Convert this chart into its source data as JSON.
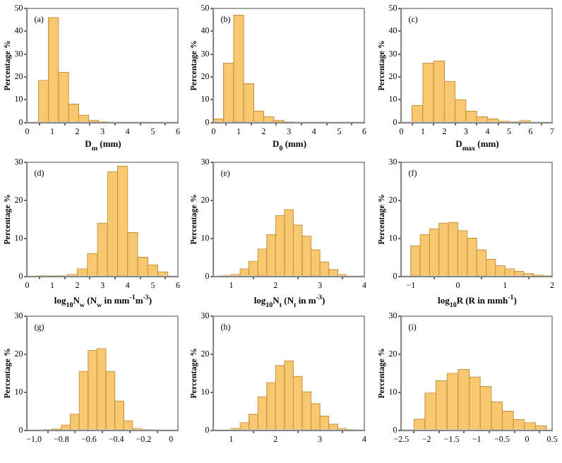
{
  "chart_data": [
    {
      "type": "histogram",
      "annotations": [
        "(a)"
      ],
      "xlabel": "D$_{m}$ (mm)",
      "ylabel": "Percentage %",
      "color": "#f8c870",
      "bins": [
        0.45,
        0.85,
        1.25,
        1.65,
        2.05,
        2.45,
        2.85,
        3.25
      ],
      "values": [
        18.5,
        46,
        22,
        8,
        3.2,
        1,
        0.3
      ],
      "xlim": [
        0,
        6
      ],
      "xticks": [
        0,
        1,
        2,
        3,
        4,
        5,
        6
      ],
      "ylim": [
        0,
        50
      ],
      "yticks": [
        0,
        10,
        20,
        30,
        40,
        50
      ]
    },
    {
      "type": "histogram",
      "annotations": [
        "(b)"
      ],
      "xlabel": "D$_{0}$ (mm)",
      "ylabel": "Percentage %",
      "color": "#f8c870",
      "bins": [
        0,
        0.4,
        0.8,
        1.2,
        1.6,
        2.0,
        2.4,
        2.8,
        3.2
      ],
      "values": [
        1.5,
        26,
        47,
        17,
        5,
        2.5,
        1,
        0.3
      ],
      "xlim": [
        0,
        6
      ],
      "xticks": [
        0,
        1,
        2,
        3,
        4,
        5,
        6
      ],
      "ylim": [
        0,
        50
      ],
      "yticks": [
        0,
        10,
        20,
        30,
        40,
        50
      ]
    },
    {
      "type": "histogram",
      "annotations": [
        "(c)"
      ],
      "xlabel": "D$_{max}$ (mm)",
      "ylabel": "Percentage %",
      "color": "#f8c870",
      "bins": [
        0.5,
        1.0,
        1.5,
        2.0,
        2.5,
        3.0,
        3.5,
        4.0,
        4.5,
        5.0,
        5.5,
        6.0
      ],
      "values": [
        7.5,
        26,
        27,
        18,
        10,
        5,
        2.5,
        1.5,
        0.7,
        0.2,
        0.8
      ],
      "xlim": [
        0,
        7
      ],
      "xticks": [
        0,
        1,
        2,
        3,
        4,
        5,
        6,
        7
      ],
      "ylim": [
        0,
        50
      ],
      "yticks": [
        0,
        10,
        20,
        30,
        40,
        50
      ]
    },
    {
      "type": "histogram",
      "annotations": [
        "(d)"
      ],
      "xlabel": "log$_{10}$N$_{w}$ (N$_{w}$ in mm$^{-1}$m$^{-3}$)",
      "ylabel": "Percentage %",
      "color": "#f8c870",
      "bins": [
        0.4,
        0.8,
        1.2,
        1.6,
        2.0,
        2.4,
        2.8,
        3.2,
        3.6,
        4.0,
        4.4,
        4.8,
        5.2,
        5.6
      ],
      "values": [
        0.1,
        0.1,
        0.2,
        0.5,
        2,
        6,
        14,
        27.5,
        29,
        11.5,
        5,
        3,
        1.2
      ],
      "xlim": [
        0,
        6
      ],
      "xticks": [
        0,
        1,
        2,
        3,
        4,
        5,
        6
      ],
      "ylim": [
        0,
        30
      ],
      "yticks": [
        0,
        10,
        20,
        30
      ]
    },
    {
      "type": "histogram",
      "annotations": [
        "(e)"
      ],
      "xlabel": "log$_{10}$N$_{t}$ (N$_{t}$ in m$^{-3}$)",
      "ylabel": "Percentage %",
      "color": "#f8c870",
      "bins": [
        0.8,
        1.0,
        1.2,
        1.4,
        1.6,
        1.8,
        2.0,
        2.2,
        2.4,
        2.6,
        2.8,
        3.0,
        3.2,
        3.4,
        3.6
      ],
      "values": [
        0.2,
        0.5,
        2,
        4,
        7.2,
        11,
        16,
        17.6,
        13.5,
        10.6,
        7,
        3.8,
        1.8,
        0.5
      ],
      "xlim": [
        0.6,
        4
      ],
      "xticks": [
        1,
        2,
        3,
        4
      ],
      "ylim": [
        0,
        30
      ],
      "yticks": [
        0,
        10,
        20,
        30
      ]
    },
    {
      "type": "histogram",
      "annotations": [
        "(f)"
      ],
      "xlabel": "log$_{10}$R (R in mmh$^{-1}$)",
      "ylabel": "Percentage %",
      "color": "#f8c870",
      "bins": [
        -1.0,
        -0.8,
        -0.6,
        -0.4,
        -0.2,
        0,
        0.2,
        0.4,
        0.6,
        0.8,
        1.0,
        1.2,
        1.4,
        1.6,
        1.8,
        2.0
      ],
      "values": [
        8,
        11,
        12.5,
        14,
        14.2,
        12,
        10,
        7,
        4.5,
        2.8,
        2,
        1.3,
        0.8,
        0.3,
        0.2
      ],
      "xlim": [
        -1.2,
        2
      ],
      "xticks": [
        {
          "value": -1,
          "label": "−1"
        },
        0,
        1,
        2
      ],
      "ylim": [
        0,
        30
      ],
      "yticks": [
        0,
        10,
        20,
        30
      ]
    },
    {
      "type": "histogram",
      "annotations": [
        "(g)"
      ],
      "ylabel": "Percentage %",
      "color": "#f8c870",
      "bins": [
        -0.93,
        -0.865,
        -0.8,
        -0.735,
        -0.67,
        -0.605,
        -0.54,
        -0.475,
        -0.41,
        -0.345,
        -0.28,
        -0.215,
        -0.15
      ],
      "values": [
        0.1,
        0.3,
        1.4,
        4.2,
        15.5,
        21,
        21.5,
        15.5,
        7.7,
        2.5,
        0.5,
        0.1
      ],
      "xlim": [
        -1.05,
        0.05
      ],
      "xticks": [
        {
          "value": -1,
          "label": "−1.0"
        },
        {
          "value": -0.8,
          "label": "−0.8"
        },
        {
          "value": -0.6,
          "label": "−0.6"
        },
        {
          "value": -0.4,
          "label": "−0.4"
        },
        {
          "value": -0.2,
          "label": "−0.2"
        },
        0
      ],
      "ylim": [
        0,
        30
      ],
      "yticks": [
        0,
        10,
        20,
        30
      ]
    },
    {
      "type": "histogram",
      "annotations": [
        "(h)"
      ],
      "ylabel": "Percentage %",
      "color": "#f8c870",
      "bins": [
        1.0,
        1.2,
        1.4,
        1.6,
        1.8,
        2.0,
        2.2,
        2.4,
        2.6,
        2.8,
        3.0,
        3.2,
        3.4,
        3.6,
        3.8
      ],
      "values": [
        0.5,
        2,
        4.2,
        8.8,
        12.5,
        17,
        18.2,
        14.2,
        10.1,
        7,
        3.7,
        1.6,
        0.5,
        0.1
      ],
      "xlim": [
        0.6,
        4
      ],
      "xticks": [
        1,
        2,
        3,
        4
      ],
      "ylim": [
        0,
        30
      ],
      "yticks": [
        0,
        10,
        20,
        30
      ]
    },
    {
      "type": "histogram",
      "annotations": [
        "(i)"
      ],
      "ylabel": "Percentage %",
      "color": "#f8c870",
      "bins": [
        -2.25,
        -2.03,
        -1.81,
        -1.59,
        -1.37,
        -1.15,
        -0.93,
        -0.71,
        -0.49,
        -0.27,
        -0.05,
        0.17,
        0.39
      ],
      "values": [
        2.9,
        9.8,
        13,
        15,
        16,
        14,
        11.5,
        7.5,
        5,
        2.8,
        2,
        1.2
      ],
      "xlim": [
        -2.5,
        0.5
      ],
      "xticks": [
        {
          "value": -2.5,
          "label": "−2.5"
        },
        {
          "value": -2,
          "label": "−2"
        },
        {
          "value": -1.5,
          "label": "−1.5"
        },
        {
          "value": -1,
          "label": "−1"
        },
        {
          "value": -0.5,
          "label": "−0.5"
        },
        0,
        0.5
      ],
      "ylim": [
        0,
        30
      ],
      "yticks": [
        0,
        10,
        20,
        30
      ]
    }
  ]
}
